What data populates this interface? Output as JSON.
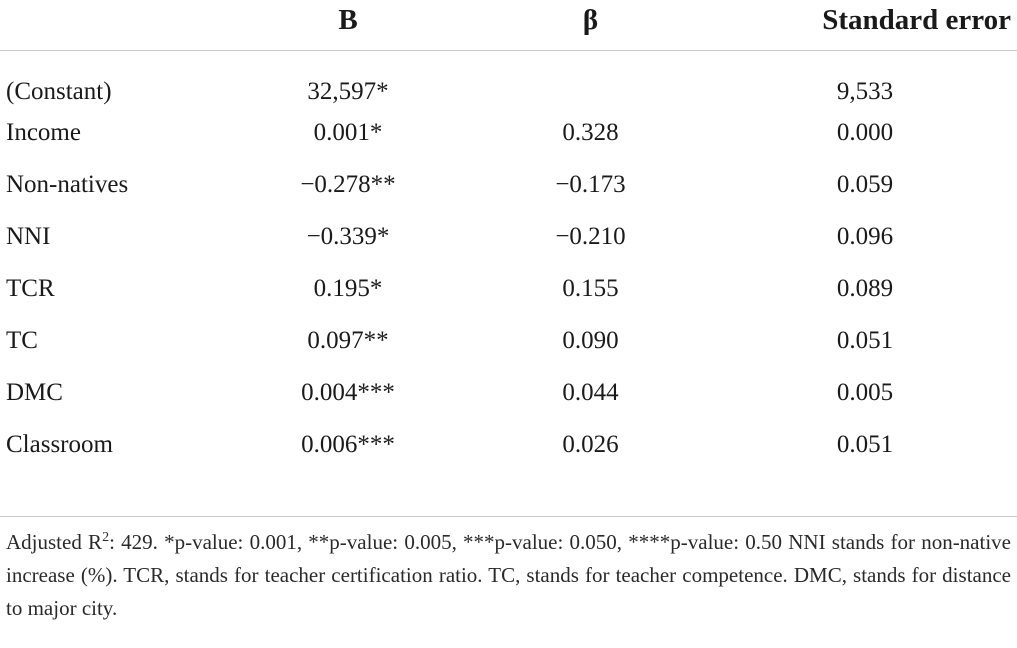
{
  "table": {
    "headers": [
      "",
      "B",
      "β",
      "Standard error"
    ],
    "rows": [
      {
        "label": "(Constant)",
        "b": "32,597*",
        "beta": "",
        "se": "9,533"
      },
      {
        "label": "Income",
        "b": "0.001*",
        "beta": "0.328",
        "se": "0.000"
      },
      {
        "label": "Non-natives",
        "b": "−0.278**",
        "beta": "−0.173",
        "se": "0.059"
      },
      {
        "label": "NNI",
        "b": "−0.339*",
        "beta": "−0.210",
        "se": "0.096"
      },
      {
        "label": "TCR",
        "b": "0.195*",
        "beta": "0.155",
        "se": "0.089"
      },
      {
        "label": "TC",
        "b": "0.097**",
        "beta": "0.090",
        "se": "0.051"
      },
      {
        "label": "DMC",
        "b": "0.004***",
        "beta": "0.044",
        "se": "0.005"
      },
      {
        "label": "Classroom",
        "b": "0.006***",
        "beta": "0.026",
        "se": "0.051"
      }
    ]
  },
  "footnote": {
    "prefix": "Adjusted R",
    "sup": "2",
    "text": ": 429. *p-value: 0.001, **p-value: 0.005, ***p-value: 0.050, ****p-value: 0.50 NNI stands for non-native increase (%). TCR, stands for teacher certification ratio. TC, stands for teacher competence. DMC, stands for distance to major city."
  }
}
